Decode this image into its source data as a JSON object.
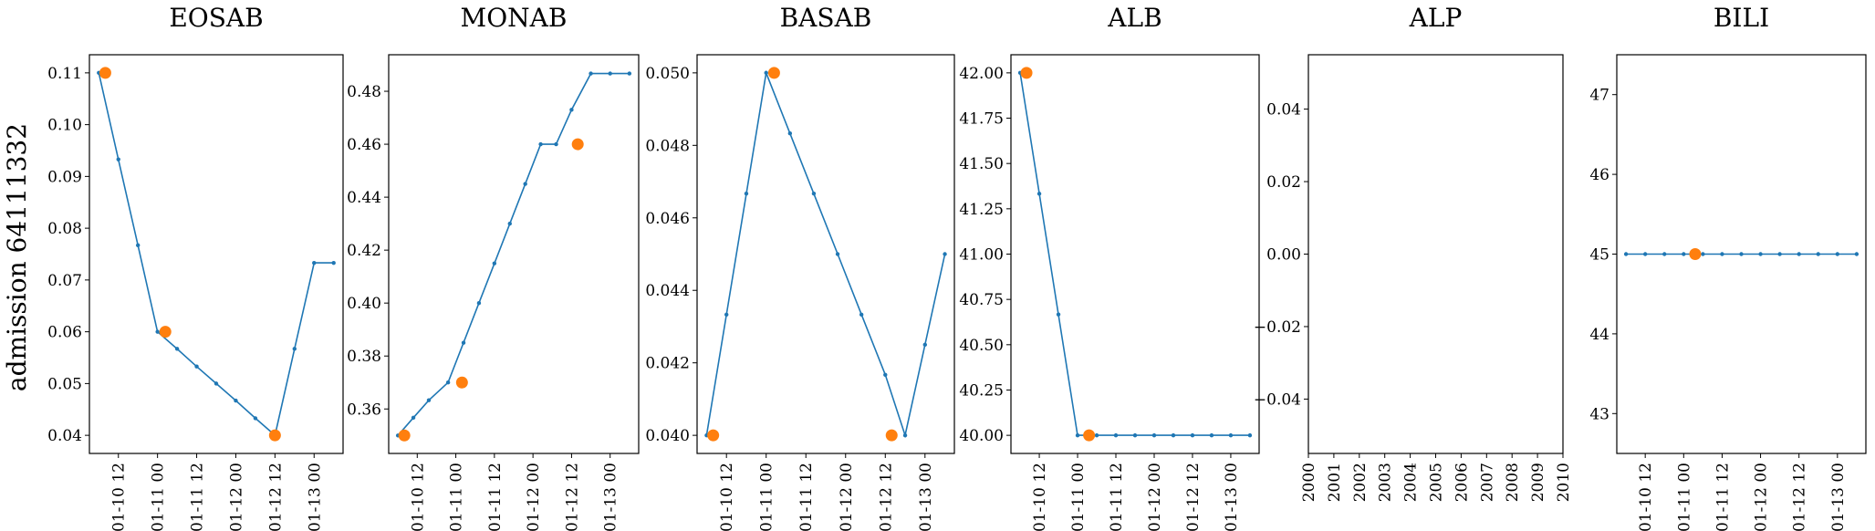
{
  "figure": {
    "ylabel": "admission 64111332"
  },
  "chart_data": [
    {
      "type": "line",
      "title": "EOSAB",
      "xlabel": "",
      "ylabel": "admission 64111332",
      "x_ticks": [
        "01-10 12",
        "01-11 00",
        "01-11 12",
        "01-12 00",
        "01-12 12",
        "01-13 00"
      ],
      "y_ticks": [
        "0.04",
        "0.05",
        "0.06",
        "0.07",
        "0.08",
        "0.09",
        "0.10",
        "0.11"
      ],
      "xlim": [
        -0.12,
        3.12
      ],
      "ylim": [
        0.0365,
        0.1135
      ],
      "series": [
        {
          "style": "line",
          "color": "#1f77b4",
          "x": [
            0,
            0.25,
            0.5,
            0.75,
            1.0,
            1.25,
            1.5,
            1.75,
            2.0,
            2.25,
            2.5,
            2.75,
            3.0
          ],
          "y": [
            0.11,
            0.0933,
            0.0767,
            0.06,
            0.0567,
            0.0533,
            0.05,
            0.0467,
            0.0433,
            0.04,
            0.0567,
            0.0733,
            0.0733
          ]
        },
        {
          "style": "markers",
          "color": "#ff7f0e",
          "x": [
            0.083,
            0.85,
            2.25
          ],
          "y": [
            0.11,
            0.06,
            0.04
          ]
        }
      ]
    },
    {
      "type": "line",
      "title": "MONAB",
      "xlabel": "",
      "ylabel": "",
      "x_ticks": [
        "01-10 12",
        "01-11 00",
        "01-11 12",
        "01-12 00",
        "01-12 12",
        "01-13 00"
      ],
      "y_ticks": [
        "0.36",
        "0.38",
        "0.40",
        "0.42",
        "0.44",
        "0.46",
        "0.48"
      ],
      "xlim": [
        -0.12,
        3.12
      ],
      "ylim": [
        0.3432,
        0.4938
      ],
      "series": [
        {
          "style": "line",
          "color": "#1f77b4",
          "x": [
            0,
            0.2,
            0.4,
            0.65,
            0.85,
            1.05,
            1.25,
            1.45,
            1.65,
            1.85,
            2.05,
            2.25,
            2.5,
            2.75,
            3.0
          ],
          "y": [
            0.35,
            0.3567,
            0.3633,
            0.37,
            0.385,
            0.4,
            0.415,
            0.43,
            0.445,
            0.46,
            0.46,
            0.473,
            0.4867,
            0.4867,
            0.4867
          ]
        },
        {
          "style": "markers",
          "color": "#ff7f0e",
          "x": [
            0.083,
            0.83,
            2.33
          ],
          "y": [
            0.35,
            0.37,
            0.46
          ]
        }
      ]
    },
    {
      "type": "line",
      "title": "BASAB",
      "xlabel": "",
      "ylabel": "",
      "x_ticks": [
        "01-10 12",
        "01-11 00",
        "01-11 12",
        "01-12 00",
        "01-12 12",
        "01-13 00"
      ],
      "y_ticks": [
        "0.040",
        "0.042",
        "0.044",
        "0.046",
        "0.048",
        "0.050"
      ],
      "xlim": [
        -0.12,
        3.12
      ],
      "ylim": [
        0.0395,
        0.0505
      ],
      "series": [
        {
          "style": "line",
          "color": "#1f77b4",
          "x": [
            0,
            0.25,
            0.5,
            0.75,
            1.05,
            1.35,
            1.65,
            1.95,
            2.25,
            2.5,
            2.75,
            3.0
          ],
          "y": [
            0.04,
            0.04333,
            0.04667,
            0.05,
            0.04833,
            0.04667,
            0.045,
            0.04333,
            0.04167,
            0.04,
            0.0425,
            0.045
          ]
        },
        {
          "style": "markers",
          "color": "#ff7f0e",
          "x": [
            0.083,
            0.85,
            2.33
          ],
          "y": [
            0.04,
            0.05,
            0.04
          ]
        }
      ]
    },
    {
      "type": "line",
      "title": "ALB",
      "xlabel": "",
      "ylabel": "",
      "x_ticks": [
        "01-10 12",
        "01-11 00",
        "01-11 12",
        "01-12 00",
        "01-12 12",
        "01-13 00"
      ],
      "y_ticks": [
        "40.00",
        "40.25",
        "40.50",
        "40.75",
        "41.00",
        "41.25",
        "41.50",
        "41.75",
        "42.00"
      ],
      "xlim": [
        -0.12,
        3.12
      ],
      "ylim": [
        39.9,
        42.1
      ],
      "series": [
        {
          "style": "line",
          "color": "#1f77b4",
          "x": [
            0,
            0.25,
            0.5,
            0.75,
            1.0,
            1.25,
            1.5,
            1.75,
            2.0,
            2.25,
            2.5,
            2.75,
            3.0
          ],
          "y": [
            42.0,
            41.333,
            40.667,
            40.0,
            40.0,
            40.0,
            40.0,
            40.0,
            40.0,
            40.0,
            40.0,
            40.0,
            40.0
          ]
        },
        {
          "style": "markers",
          "color": "#ff7f0e",
          "x": [
            0.083,
            0.9
          ],
          "y": [
            42.0,
            40.0
          ]
        }
      ]
    },
    {
      "type": "line",
      "title": "ALP",
      "xlabel": "",
      "ylabel": "",
      "x_ticks": [
        "2000",
        "2001",
        "2002",
        "2003",
        "2004",
        "2005",
        "2006",
        "2007",
        "2008",
        "2009",
        "2010"
      ],
      "y_ticks": [
        "−0.04",
        "−0.02",
        "0.00",
        "0.02",
        "0.04"
      ],
      "xlim": [
        2000,
        2010
      ],
      "ylim": [
        -0.055,
        0.055
      ],
      "series": []
    },
    {
      "type": "line",
      "title": "BILI",
      "xlabel": "",
      "ylabel": "",
      "x_ticks": [
        "01-10 12",
        "01-11 00",
        "01-11 12",
        "01-12 00",
        "01-12 12",
        "01-13 00"
      ],
      "y_ticks": [
        "43",
        "44",
        "45",
        "46",
        "47"
      ],
      "xlim": [
        -0.12,
        3.12
      ],
      "ylim": [
        42.5,
        47.5
      ],
      "series": [
        {
          "style": "line",
          "color": "#1f77b4",
          "x": [
            0,
            0.25,
            0.5,
            0.75,
            1.0,
            1.25,
            1.5,
            1.75,
            2.0,
            2.25,
            2.5,
            2.75,
            3.0
          ],
          "y": [
            45,
            45,
            45,
            45,
            45,
            45,
            45,
            45,
            45,
            45,
            45,
            45,
            45
          ]
        },
        {
          "style": "markers",
          "color": "#ff7f0e",
          "x": [
            0.9
          ],
          "y": [
            45
          ]
        }
      ]
    }
  ]
}
